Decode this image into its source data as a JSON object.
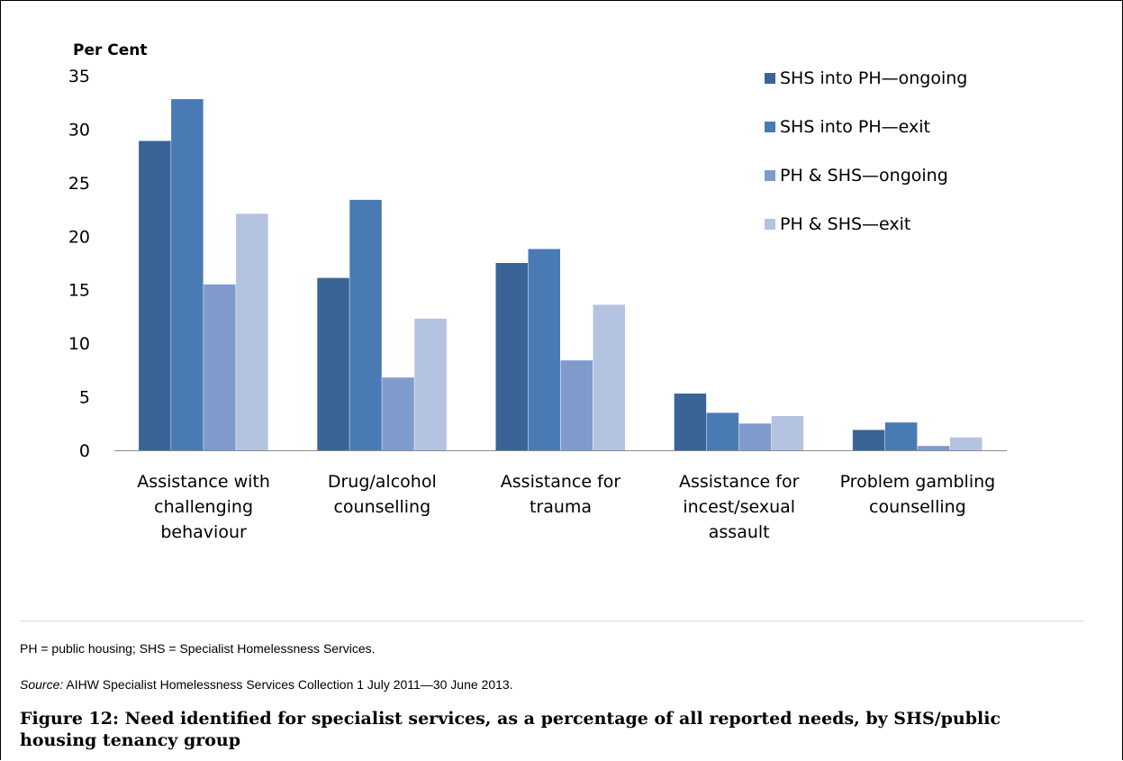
{
  "chart_data": {
    "type": "bar",
    "ylabel": "Per Cent",
    "ylim": [
      0,
      35
    ],
    "yticks": [
      0,
      5,
      10,
      15,
      20,
      25,
      30,
      35
    ],
    "grid": false,
    "legend_position": "top-right",
    "categories": [
      [
        "Assistance with",
        "challenging",
        "behaviour"
      ],
      [
        "Drug/alcohol",
        "counselling"
      ],
      [
        "Assistance for",
        "trauma"
      ],
      [
        "Assistance for",
        "incest/sexual",
        "assault"
      ],
      [
        "Problem gambling",
        "counselling"
      ]
    ],
    "series": [
      {
        "name": "SHS into PH—ongoing",
        "color": "#3b6496",
        "values": [
          28.9,
          16.1,
          17.5,
          5.3,
          1.9
        ]
      },
      {
        "name": "SHS into PH—exit",
        "color": "#4a7ab4",
        "values": [
          32.8,
          23.4,
          18.8,
          3.5,
          2.6
        ]
      },
      {
        "name": "PH & SHS—ongoing",
        "color": "#7f9bcb",
        "values": [
          15.5,
          6.8,
          8.4,
          2.5,
          0.4
        ]
      },
      {
        "name": "PH & SHS—exit",
        "color": "#b4c3e0",
        "values": [
          22.1,
          12.3,
          13.6,
          3.2,
          1.2
        ]
      }
    ]
  },
  "notes": {
    "abbreviations": "PH = public housing; SHS = Specialist Homelessness Services.",
    "source_label": "Source:",
    "source_text": " AIHW Specialist Homelessness Services Collection 1 July 2011—30 June 2013."
  },
  "figure_title": "Figure 12: Need identified for specialist services, as a percentage of all reported needs, by SHS/public housing tenancy group"
}
